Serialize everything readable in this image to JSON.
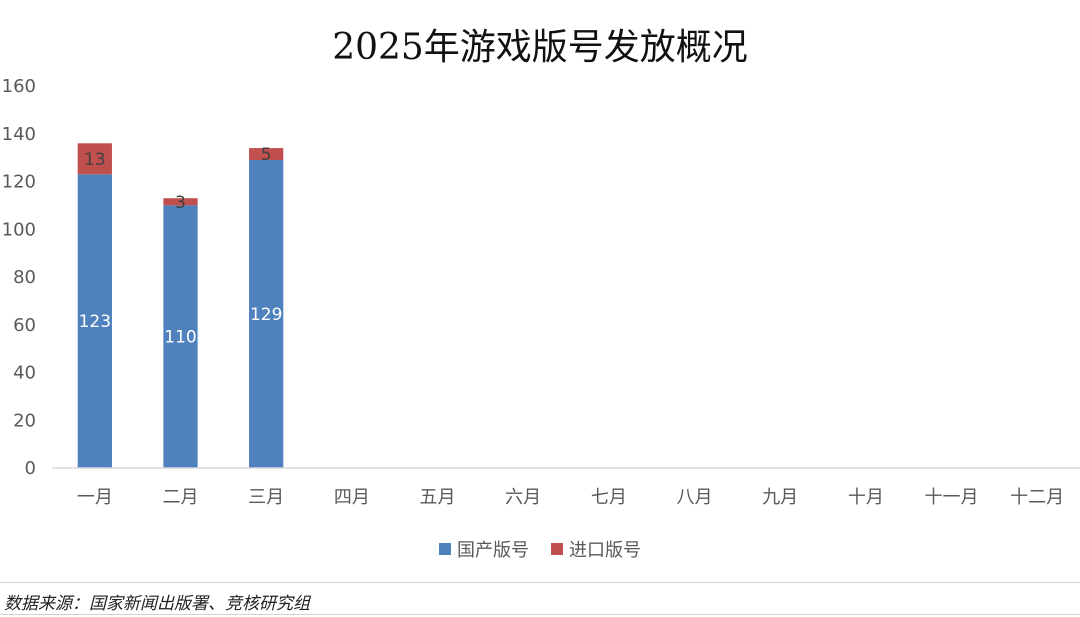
{
  "chart_data": {
    "type": "bar",
    "stacked": true,
    "title": "2025年游戏版号发放概况",
    "categories": [
      "一月",
      "二月",
      "三月",
      "四月",
      "五月",
      "六月",
      "七月",
      "八月",
      "九月",
      "十月",
      "十一月",
      "十二月"
    ],
    "series": [
      {
        "name": "国产版号",
        "color": "#4F81BD",
        "label_color": "#ffffff",
        "values": [
          123,
          110,
          129,
          null,
          null,
          null,
          null,
          null,
          null,
          null,
          null,
          null
        ]
      },
      {
        "name": "进口版号",
        "color": "#C0504D",
        "label_color": "#404040",
        "values": [
          13,
          3,
          5,
          null,
          null,
          null,
          null,
          null,
          null,
          null,
          null,
          null
        ]
      }
    ],
    "ylim": [
      0,
      160
    ],
    "yticks": [
      0,
      20,
      40,
      60,
      80,
      100,
      120,
      140,
      160
    ],
    "grid": false,
    "legend_position": "bottom"
  },
  "source": "数据来源：国家新闻出版署、竞核研究组"
}
